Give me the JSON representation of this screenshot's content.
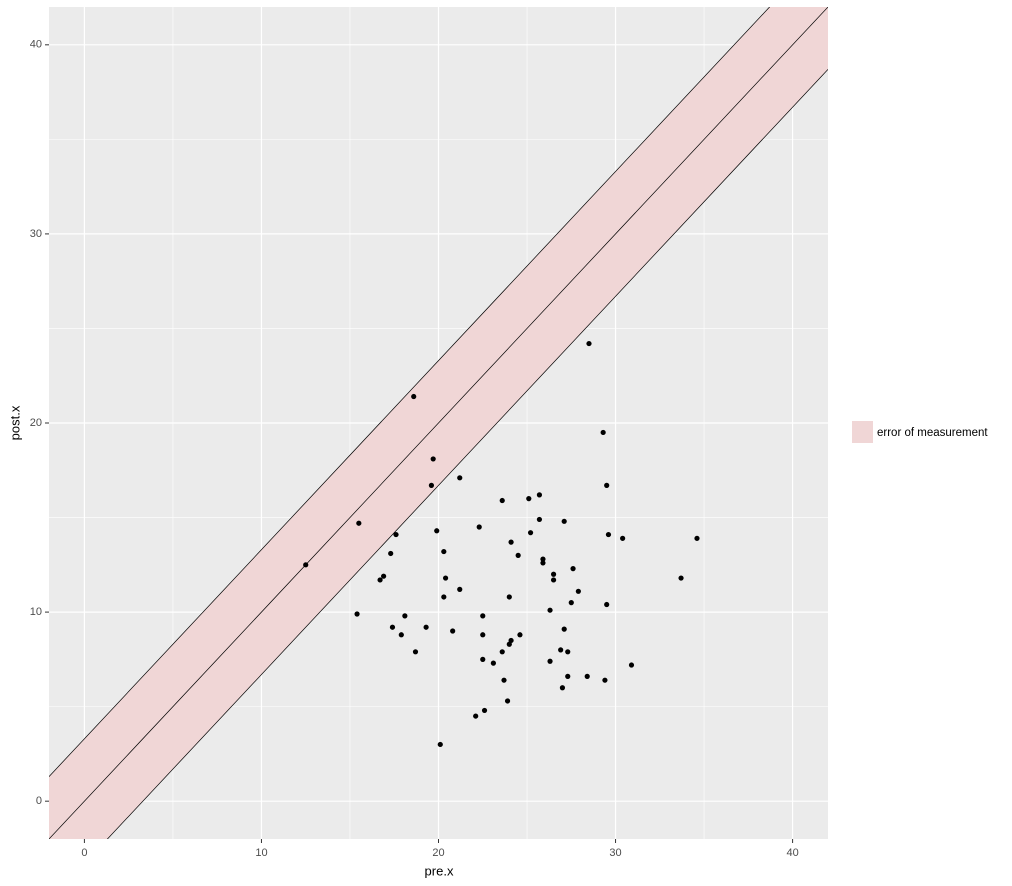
{
  "chart_data": {
    "type": "scatter",
    "xlabel": "pre.x",
    "ylabel": "post.x",
    "xlim": [
      -2,
      42
    ],
    "ylim": [
      -2,
      42
    ],
    "xticks": [
      0,
      10,
      20,
      30,
      40
    ],
    "yticks": [
      0,
      10,
      20,
      30,
      40
    ],
    "xminor": [
      5,
      15,
      25,
      35
    ],
    "yminor": [
      5,
      15,
      25,
      35
    ],
    "grid": true,
    "legend": "right",
    "color": "#000000",
    "ribbon": {
      "name": "error of measurement",
      "color": "#f0d6d6",
      "slope": 1,
      "intercept": 0,
      "offset": 3.3
    },
    "x": [
      12.5,
      15.5,
      15.4,
      18.6,
      19.7,
      19.6,
      21.2,
      28.5,
      29.3,
      29.5,
      17.6,
      17.3,
      16.7,
      16.9,
      19.9,
      20.3,
      20.4,
      20.3,
      21.2,
      20.8,
      18.1,
      17.4,
      17.9,
      18.7,
      19.3,
      20.1,
      22.3,
      23.6,
      24.1,
      24.5,
      25.1,
      25.7,
      25.7,
      25.2,
      25.9,
      25.9,
      26.5,
      26.5,
      27.1,
      24.0,
      22.5,
      22.5,
      22.5,
      23.1,
      24.1,
      24.0,
      24.6,
      23.6,
      23.7,
      23.9,
      22.6,
      22.1,
      26.3,
      27.6,
      27.9,
      27.5,
      27.1,
      27.3,
      26.9,
      26.3,
      27.3,
      27.0,
      28.4,
      29.4,
      29.5,
      29.6,
      30.4,
      30.9,
      33.7,
      34.6
    ],
    "y": [
      12.5,
      14.7,
      9.9,
      21.4,
      18.1,
      16.7,
      17.1,
      24.2,
      19.5,
      16.7,
      14.1,
      13.1,
      11.7,
      11.9,
      14.3,
      13.2,
      11.8,
      10.8,
      11.2,
      9.0,
      9.8,
      9.2,
      8.8,
      7.9,
      9.2,
      3.0,
      14.5,
      15.9,
      13.7,
      13.0,
      16.0,
      16.2,
      14.9,
      14.2,
      12.6,
      12.8,
      12.0,
      11.7,
      14.8,
      10.8,
      9.8,
      8.8,
      7.5,
      7.3,
      8.5,
      8.3,
      8.8,
      7.9,
      6.4,
      5.3,
      4.8,
      4.5,
      10.1,
      12.3,
      11.1,
      10.5,
      9.1,
      7.9,
      8.0,
      7.4,
      6.6,
      6.0,
      6.6,
      6.4,
      10.4,
      14.1,
      13.9,
      7.2,
      11.8,
      13.9
    ]
  }
}
